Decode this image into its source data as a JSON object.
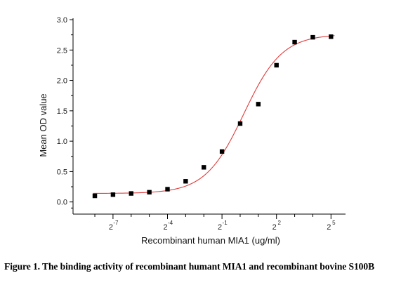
{
  "chart_data": {
    "type": "scatter",
    "xscale": "log2",
    "xlabel": "Recombinant human  MIA1  (ug/ml)",
    "ylabel": "Mean OD value",
    "xlim_log2": [
      -9.2,
      5.8
    ],
    "ylim": [
      -0.2,
      3.0
    ],
    "xticks_major_log2": [
      -7,
      -4,
      -1,
      2,
      5
    ],
    "xtick_labels": [
      {
        "base": "2",
        "exp": "-7"
      },
      {
        "base": "2",
        "exp": "-4"
      },
      {
        "base": "2",
        "exp": "-1"
      },
      {
        "base": "2",
        "exp": "2"
      },
      {
        "base": "2",
        "exp": "5"
      }
    ],
    "xticks_minor_log2": [
      -8,
      -6,
      -5,
      -3,
      -2,
      0,
      1,
      3,
      4
    ],
    "yticks": [
      "0.0",
      "0.5",
      "1.0",
      "1.5",
      "2.0",
      "2.5",
      "3.0"
    ],
    "series": [
      {
        "marker": "square",
        "color": "#000000",
        "x_log2": [
          -8,
          -7,
          -6,
          -5,
          -4,
          -3,
          -2,
          -1,
          0,
          1,
          2,
          3,
          4,
          5
        ],
        "y": [
          0.1,
          0.12,
          0.14,
          0.16,
          0.21,
          0.34,
          0.57,
          0.83,
          1.29,
          1.61,
          2.25,
          2.63,
          2.71,
          2.72
        ]
      }
    ],
    "fit": {
      "type": "logistic",
      "color": "#e03c3c",
      "bottom": 0.14,
      "top": 2.76,
      "ec50_log2": 0.2,
      "hill": 0.62
    },
    "grid": false,
    "legend": "none"
  },
  "caption": "Figure 1. The binding activity of recombinant humant MIA1 and recombinant bovine S100B"
}
